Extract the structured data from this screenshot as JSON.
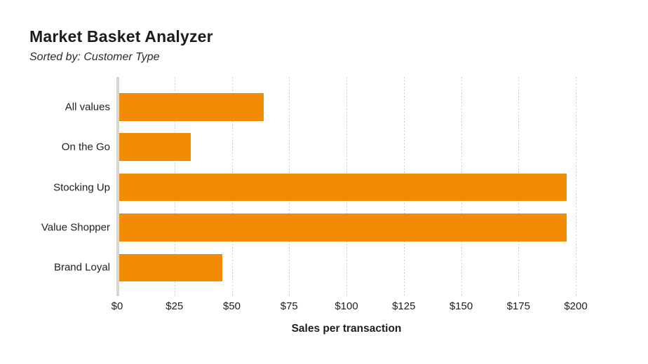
{
  "title": "Market Basket Analyzer",
  "subtitle": "Sorted by: Customer Type",
  "chart_data": {
    "type": "bar",
    "orientation": "horizontal",
    "title": "Market Basket Analyzer",
    "subtitle": "Sorted by: Customer Type",
    "categories": [
      "All values",
      "On the Go",
      "Stocking Up",
      "Value Shopper",
      "Brand Loyal"
    ],
    "values": [
      64,
      32,
      196,
      196,
      46
    ],
    "xlabel": "Sales per transaction",
    "ylabel": "",
    "xlim": [
      0,
      200
    ],
    "xticks": [
      "$0",
      "$25",
      "$50",
      "$75",
      "$100",
      "$125",
      "$150",
      "$175",
      "$200"
    ],
    "xtick_values": [
      0,
      25,
      50,
      75,
      100,
      125,
      150,
      175,
      200
    ],
    "grid": "vertical-dotted",
    "legend": "none",
    "colors": {
      "bar": "#F28C06",
      "axis_zero_line": "#D6D6D6",
      "gridline": "#CBCBCB",
      "text": "#1E1E1E",
      "background": "#FFFFFF"
    }
  }
}
